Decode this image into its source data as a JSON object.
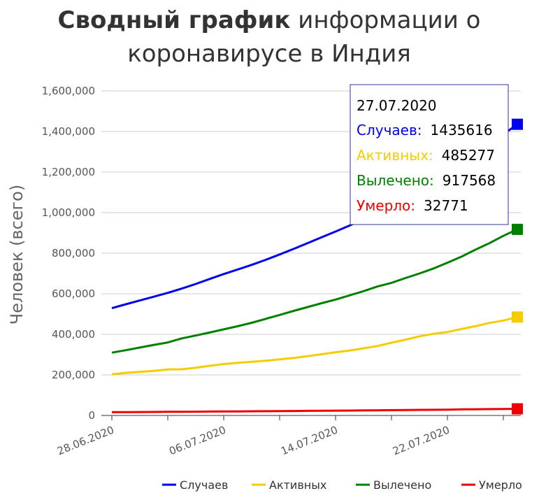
{
  "chart_data": {
    "type": "line",
    "title_bold": "Сводный график",
    "title_rest_line1": "информации о",
    "title_line2": "коронавирусе в Индия",
    "ylabel": "Человек (всего)",
    "ylim": [
      0,
      1600000
    ],
    "yticks": [
      0,
      200000,
      400000,
      600000,
      800000,
      1000000,
      1200000,
      1400000,
      1600000
    ],
    "ytick_labels": [
      "0",
      "200,000",
      "400,000",
      "600,000",
      "800,000",
      "1,000,000",
      "1,200,000",
      "1,400,000",
      "1,600,000"
    ],
    "x_dates": [
      "28.06.2020",
      "29.06.2020",
      "30.06.2020",
      "01.07.2020",
      "02.07.2020",
      "03.07.2020",
      "04.07.2020",
      "05.07.2020",
      "06.07.2020",
      "07.07.2020",
      "08.07.2020",
      "09.07.2020",
      "10.07.2020",
      "11.07.2020",
      "12.07.2020",
      "13.07.2020",
      "14.07.2020",
      "15.07.2020",
      "16.07.2020",
      "17.07.2020",
      "18.07.2020",
      "19.07.2020",
      "20.07.2020",
      "21.07.2020",
      "22.07.2020",
      "23.07.2020",
      "24.07.2020",
      "25.07.2020",
      "26.07.2020",
      "27.07.2020"
    ],
    "xtick_labels": [
      "28.06.2020",
      "06.07.2020",
      "14.07.2020",
      "22.07.2020"
    ],
    "series": [
      {
        "name": "Случаев",
        "color": "#0000ee",
        "values": [
          528859,
          548318,
          566840,
          585493,
          604641,
          625544,
          648315,
          673165,
          697413,
          719665,
          742417,
          767296,
          793802,
          820916,
          849553,
          878254,
          906752,
          936181,
          968876,
          1003832,
          1038716,
          1077781,
          1118043,
          1155191,
          1193078,
          1238635,
          1287945,
          1336861,
          1385522,
          1435616
        ]
      },
      {
        "name": "Активных",
        "color": "#f5cc00",
        "values": [
          203051,
          210120,
          215125,
          220114,
          226947,
          227439,
          235433,
          244814,
          253287,
          259557,
          264944,
          269789,
          276682,
          283407,
          292258,
          301609,
          311565,
          319840,
          331146,
          342473,
          358692,
          373379,
          390459,
          402529,
          411133,
          426167,
          440135,
          456071,
          467882,
          485277
        ]
      },
      {
        "name": "Вылечено",
        "color": "#008000",
        "values": [
          309713,
          321723,
          334822,
          347912,
          359860,
          379892,
          394227,
          409083,
          424433,
          439947,
          456831,
          476378,
          495513,
          515386,
          534621,
          553471,
          571460,
          592032,
          612815,
          635757,
          653751,
          677423,
          700087,
          724578,
          753050,
          782607,
          817209,
          849432,
          885577,
          917568
        ]
      },
      {
        "name": "Умерло",
        "color": "#ee0000",
        "values": [
          16095,
          16475,
          16893,
          17400,
          17834,
          18213,
          18655,
          19268,
          19693,
          20160,
          20642,
          21129,
          21604,
          22123,
          22674,
          23174,
          23727,
          24309,
          24915,
          25602,
          26273,
          26816,
          27497,
          28084,
          28732,
          29861,
          30601,
          31358,
          32063,
          32771
        ]
      }
    ],
    "tooltip": {
      "date": "27.07.2020",
      "rows": [
        {
          "label": "Случаев:",
          "value": "1435616",
          "color": "#0000ee"
        },
        {
          "label": "Активных:",
          "value": "485277",
          "color": "#f5cc00"
        },
        {
          "label": "Вылечено:",
          "value": "917568",
          "color": "#008000"
        },
        {
          "label": "Умерло:",
          "value": "32771",
          "color": "#ee0000"
        }
      ]
    },
    "legend_position": "bottom-right",
    "grid": true
  }
}
